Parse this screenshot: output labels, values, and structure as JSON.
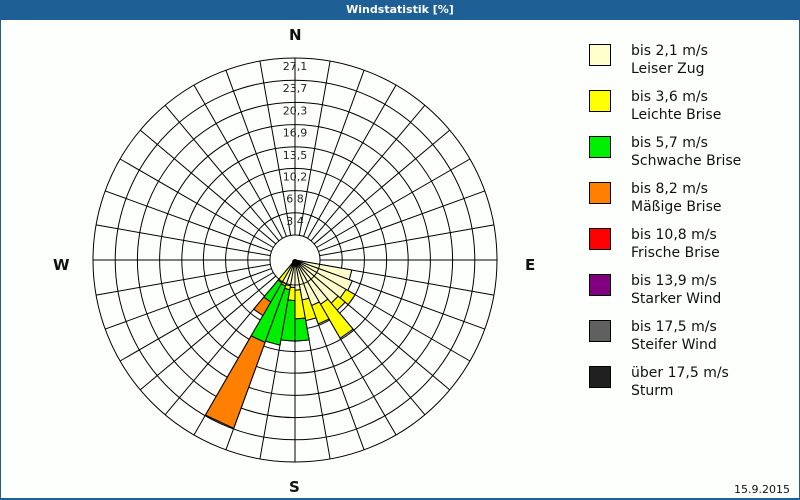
{
  "title": "Windstatistik [%]",
  "compass": {
    "N": "N",
    "E": "E",
    "S": "S",
    "W": "W"
  },
  "date": "15.9.2015",
  "legend": [
    {
      "speed": "bis 2,1 m/s",
      "name": "Leiser Zug",
      "color": "#ffffcc"
    },
    {
      "speed": "bis 3,6 m/s",
      "name": "Leichte Brise",
      "color": "#ffff00"
    },
    {
      "speed": "bis 5,7 m/s",
      "name": "Schwache Brise",
      "color": "#00ee00"
    },
    {
      "speed": "bis 8,2 m/s",
      "name": "Mäßige Brise",
      "color": "#ff8000"
    },
    {
      "speed": "bis 10,8 m/s",
      "name": "Frische Brise",
      "color": "#ff0000"
    },
    {
      "speed": "bis 13,9 m/s",
      "name": "Starker Wind",
      "color": "#800080"
    },
    {
      "speed": "bis 17,5 m/s",
      "name": "Steifer Wind",
      "color": "#606060"
    },
    {
      "speed": "über 17,5 m/s",
      "name": "Sturm",
      "color": "#202020"
    }
  ],
  "chart_data": {
    "type": "polar-bar (wind rose)",
    "title": "Windstatistik [%]",
    "unit": "%",
    "ring_labels": [
      "3,4",
      "6,8",
      "10,2",
      "13,5",
      "16,9",
      "20,3",
      "23,7",
      "27,1"
    ],
    "ring_values": [
      3.4,
      6.8,
      10.2,
      13.5,
      16.9,
      20.3,
      23.7,
      27.1
    ],
    "rmax": 27.1,
    "sector_width_deg": 10,
    "sector_count": 36,
    "grid": true,
    "legend_position": "right",
    "classes": [
      "bis 2,1 m/s",
      "bis 3,6 m/s",
      "bis 5,7 m/s",
      "bis 8,2 m/s",
      "bis 10,8 m/s",
      "bis 13,9 m/s",
      "bis 17,5 m/s",
      "über 17,5 m/s"
    ],
    "sectors": [
      {
        "dir_deg": 105,
        "values": [
          5.0,
          0,
          0,
          0,
          0,
          0,
          0,
          0
        ]
      },
      {
        "dir_deg": 115,
        "values": [
          5.5,
          0,
          0,
          0,
          0,
          0,
          0,
          0
        ]
      },
      {
        "dir_deg": 125,
        "values": [
          5.2,
          1.6,
          0,
          0,
          0,
          0,
          0,
          0
        ]
      },
      {
        "dir_deg": 135,
        "values": [
          4.8,
          1.4,
          0,
          0,
          0,
          0,
          0,
          0
        ]
      },
      {
        "dir_deg": 145,
        "values": [
          4.0,
          6.0,
          0,
          0,
          0,
          0,
          0,
          0
        ]
      },
      {
        "dir_deg": 155,
        "values": [
          3.6,
          3.0,
          0,
          0,
          0,
          0,
          0,
          0
        ]
      },
      {
        "dir_deg": 165,
        "values": [
          2.4,
          3.2,
          0,
          0,
          0,
          0,
          0,
          0
        ]
      },
      {
        "dir_deg": 175,
        "values": [
          0.8,
          4.4,
          3.4,
          0,
          0,
          0,
          0,
          0
        ]
      },
      {
        "dir_deg": 185,
        "values": [
          0.4,
          2.0,
          6.2,
          0,
          0,
          0,
          0,
          0
        ]
      },
      {
        "dir_deg": 195,
        "values": [
          0.2,
          0.6,
          8.6,
          0,
          0,
          0,
          0,
          0
        ]
      },
      {
        "dir_deg": 205,
        "values": [
          0.1,
          0.3,
          9.2,
          14.0,
          0,
          0,
          0,
          0
        ]
      },
      {
        "dir_deg": 215,
        "values": [
          0,
          0.2,
          3.4,
          2.4,
          0,
          0,
          0,
          0
        ]
      }
    ]
  }
}
